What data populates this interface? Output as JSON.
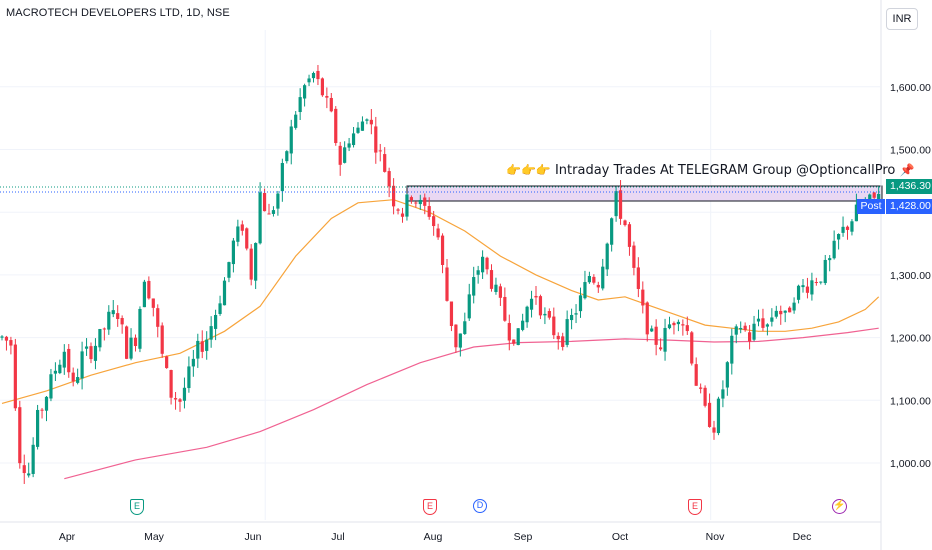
{
  "header": {
    "symbol_title": "MACROTECH DEVELOPERS LTD, 1D, NSE",
    "currency_button": "INR"
  },
  "price_tags": {
    "last_price": "1,436.30",
    "post_label": "Post",
    "post_price": "1,428.00"
  },
  "annotation": {
    "text": "Intraday Trades At TELEGRAM Group @OptioncallPro",
    "pointer_emoji": "👉👉👉",
    "pin_emoji": "📌"
  },
  "events": {
    "earnings_label": "E",
    "dividend_label": "D",
    "split_label": "⚡"
  },
  "colors": {
    "up": "#089981",
    "down": "#f23645",
    "ma_short": "#f7a43b",
    "ma_long": "#f06292",
    "zone_fill": "#e9d8f3",
    "grid": "#f0f3fa",
    "axis_text": "#131722"
  },
  "chart_data": {
    "type": "candlestick",
    "title": "MACROTECH DEVELOPERS LTD, 1D, NSE",
    "y_ticks": [
      1000,
      1100,
      1200,
      1300,
      1400,
      1500,
      1600
    ],
    "y_tick_labels": [
      "1,000.00",
      "1,100.00",
      "1,200.00",
      "1,300.00",
      "",
      "1,500.00",
      "1,600.00"
    ],
    "ylim": [
      880,
      1665
    ],
    "x_labels": [
      "Apr",
      "May",
      "Jun",
      "Jul",
      "Aug",
      "Sep",
      "Oct",
      "Nov",
      "Dec"
    ],
    "x_label_pos": [
      13,
      35,
      58,
      79,
      101,
      123,
      143,
      166,
      188
    ],
    "n_bars": 198,
    "grid": true,
    "resistance_zone": {
      "from_bar": 95,
      "to_bar": 207,
      "low": 1420,
      "high": 1448
    },
    "price_lines": [
      1436.3,
      1428.0
    ],
    "price_path": [
      [
        0,
        1200
      ],
      [
        2,
        1190
      ],
      [
        4,
        1010
      ],
      [
        6,
        985
      ],
      [
        8,
        1070
      ],
      [
        10,
        1110
      ],
      [
        12,
        1150
      ],
      [
        14,
        1180
      ],
      [
        16,
        1120
      ],
      [
        18,
        1170
      ],
      [
        20,
        1180
      ],
      [
        22,
        1200
      ],
      [
        24,
        1230
      ],
      [
        26,
        1240
      ],
      [
        28,
        1180
      ],
      [
        30,
        1200
      ],
      [
        32,
        1300
      ],
      [
        34,
        1250
      ],
      [
        36,
        1170
      ],
      [
        38,
        1110
      ],
      [
        40,
        1100
      ],
      [
        42,
        1140
      ],
      [
        44,
        1180
      ],
      [
        46,
        1200
      ],
      [
        48,
        1240
      ],
      [
        50,
        1290
      ],
      [
        52,
        1350
      ],
      [
        54,
        1380
      ],
      [
        56,
        1300
      ],
      [
        58,
        1430
      ],
      [
        60,
        1390
      ],
      [
        62,
        1430
      ],
      [
        64,
        1500
      ],
      [
        66,
        1560
      ],
      [
        68,
        1600
      ],
      [
        70,
        1620
      ],
      [
        72,
        1590
      ],
      [
        74,
        1550
      ],
      [
        76,
        1480
      ],
      [
        78,
        1520
      ],
      [
        80,
        1530
      ],
      [
        82,
        1560
      ],
      [
        84,
        1510
      ],
      [
        86,
        1470
      ],
      [
        88,
        1420
      ],
      [
        90,
        1400
      ],
      [
        92,
        1430
      ],
      [
        94,
        1410
      ],
      [
        96,
        1400
      ],
      [
        98,
        1360
      ],
      [
        100,
        1260
      ],
      [
        102,
        1190
      ],
      [
        104,
        1220
      ],
      [
        106,
        1300
      ],
      [
        108,
        1320
      ],
      [
        110,
        1290
      ],
      [
        112,
        1250
      ],
      [
        114,
        1210
      ],
      [
        116,
        1200
      ],
      [
        118,
        1250
      ],
      [
        120,
        1270
      ],
      [
        122,
        1230
      ],
      [
        124,
        1210
      ],
      [
        126,
        1200
      ],
      [
        128,
        1230
      ],
      [
        130,
        1260
      ],
      [
        132,
        1300
      ],
      [
        134,
        1290
      ],
      [
        136,
        1360
      ],
      [
        138,
        1420
      ],
      [
        140,
        1380
      ],
      [
        142,
        1300
      ],
      [
        144,
        1240
      ],
      [
        146,
        1200
      ],
      [
        148,
        1190
      ],
      [
        150,
        1220
      ],
      [
        152,
        1240
      ],
      [
        154,
        1210
      ],
      [
        156,
        1130
      ],
      [
        158,
        1080
      ],
      [
        160,
        1060
      ],
      [
        162,
        1120
      ],
      [
        164,
        1190
      ],
      [
        166,
        1220
      ],
      [
        168,
        1200
      ],
      [
        170,
        1230
      ],
      [
        172,
        1220
      ],
      [
        174,
        1250
      ],
      [
        176,
        1230
      ],
      [
        178,
        1270
      ],
      [
        180,
        1280
      ],
      [
        182,
        1290
      ],
      [
        184,
        1300
      ],
      [
        186,
        1320
      ],
      [
        188,
        1360
      ],
      [
        190,
        1380
      ],
      [
        192,
        1400
      ],
      [
        194,
        1410
      ],
      [
        196,
        1420
      ],
      [
        197,
        1436.3
      ]
    ],
    "ma_short": [
      [
        0,
        1095
      ],
      [
        10,
        1115
      ],
      [
        20,
        1140
      ],
      [
        30,
        1160
      ],
      [
        40,
        1175
      ],
      [
        50,
        1210
      ],
      [
        58,
        1250
      ],
      [
        66,
        1330
      ],
      [
        74,
        1390
      ],
      [
        80,
        1415
      ],
      [
        88,
        1420
      ],
      [
        96,
        1400
      ],
      [
        104,
        1370
      ],
      [
        112,
        1330
      ],
      [
        120,
        1300
      ],
      [
        128,
        1275
      ],
      [
        134,
        1260
      ],
      [
        140,
        1265
      ],
      [
        146,
        1250
      ],
      [
        152,
        1235
      ],
      [
        158,
        1220
      ],
      [
        164,
        1215
      ],
      [
        170,
        1210
      ],
      [
        176,
        1210
      ],
      [
        182,
        1215
      ],
      [
        188,
        1225
      ],
      [
        194,
        1245
      ],
      [
        197,
        1265
      ]
    ],
    "ma_long": [
      [
        14,
        975
      ],
      [
        30,
        1005
      ],
      [
        46,
        1025
      ],
      [
        58,
        1050
      ],
      [
        70,
        1085
      ],
      [
        82,
        1125
      ],
      [
        94,
        1160
      ],
      [
        106,
        1185
      ],
      [
        116,
        1192
      ],
      [
        128,
        1194
      ],
      [
        140,
        1198
      ],
      [
        150,
        1196
      ],
      [
        160,
        1193
      ],
      [
        170,
        1194
      ],
      [
        180,
        1200
      ],
      [
        190,
        1208
      ],
      [
        197,
        1215
      ]
    ],
    "events": [
      {
        "bar": 31,
        "kind": "earnings",
        "color": "green"
      },
      {
        "bar": 99,
        "kind": "earnings",
        "color": "red"
      },
      {
        "bar": 111,
        "kind": "dividend"
      },
      {
        "bar": 161,
        "kind": "earnings",
        "color": "red"
      },
      {
        "bar": 195,
        "kind": "split"
      }
    ]
  }
}
